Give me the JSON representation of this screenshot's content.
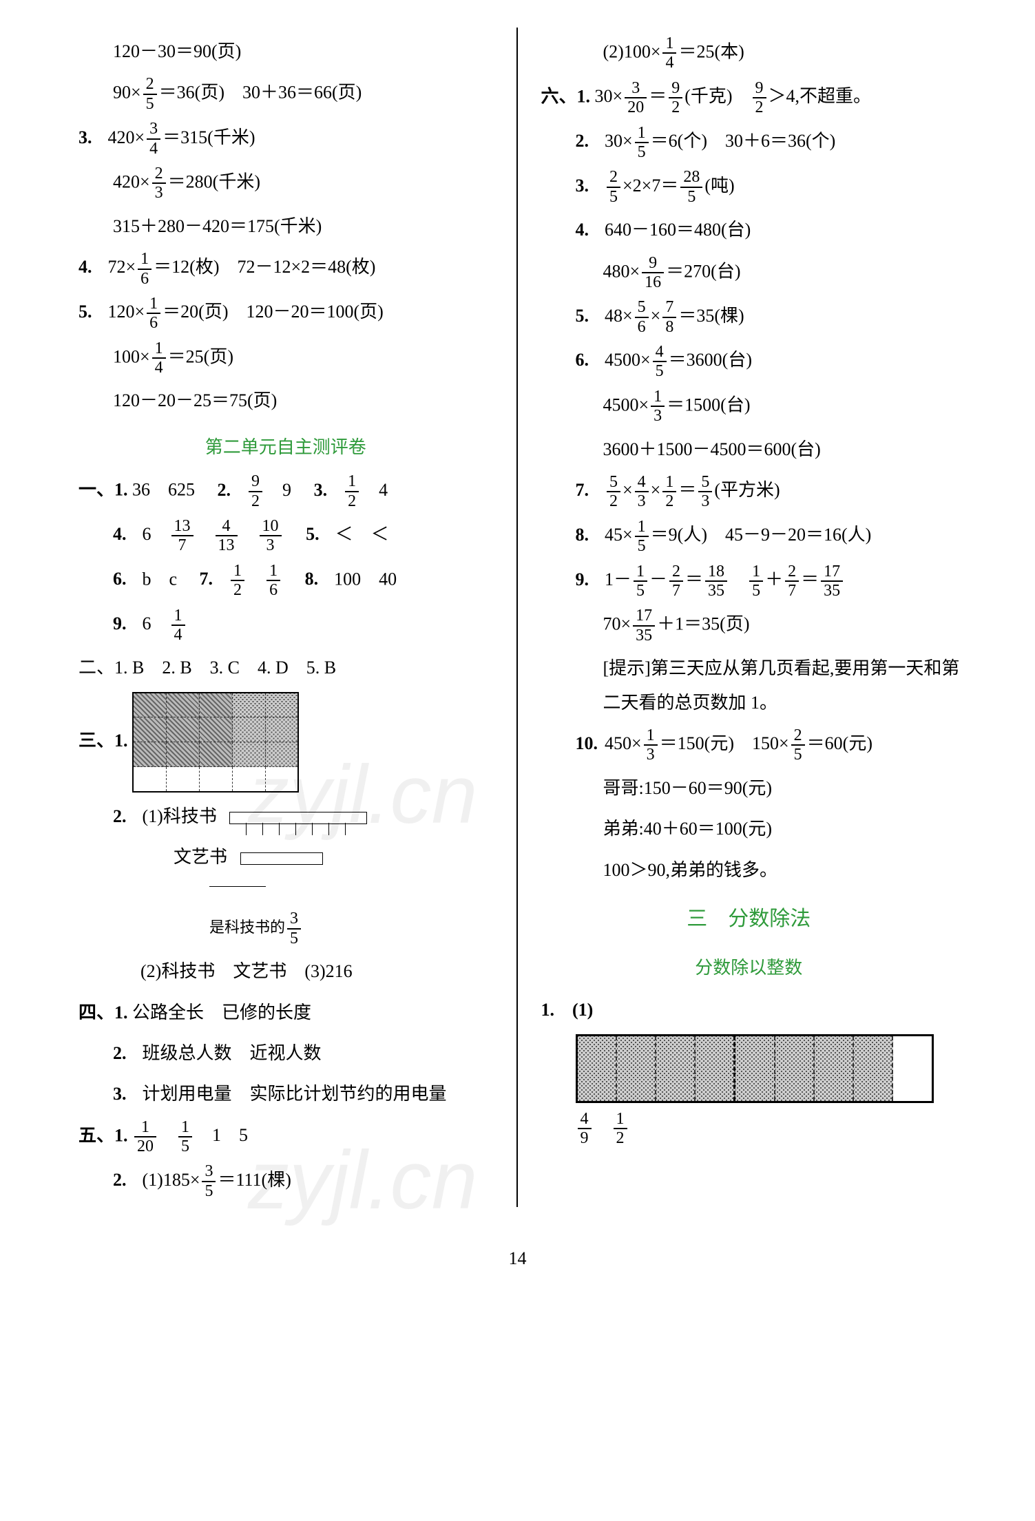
{
  "left": {
    "top_lines": [
      "120－30＝90(页)",
      "90×{2/5}＝36(页)　30＋36＝66(页)"
    ],
    "items": [
      {
        "n": "3.",
        "lines": [
          "420×{3/4}＝315(千米)",
          "420×{2/3}＝280(千米)",
          "315＋280－420＝175(千米)"
        ]
      },
      {
        "n": "4.",
        "lines": [
          "72×{1/6}＝12(枚)　72－12×2＝48(枚)"
        ]
      },
      {
        "n": "5.",
        "lines": [
          "120×{1/6}＝20(页)　120－20＝100(页)",
          "100×{1/4}＝25(页)",
          "120－20－25＝75(页)"
        ]
      }
    ],
    "test_title": "第二单元自主测评卷",
    "sec1": [
      {
        "n": "一、1.",
        "t": "36　625　"
      },
      {
        "after": [
          {
            "n": "2.",
            "t": "{9/2}　9"
          },
          {
            "n": "3.",
            "t": "{1/2}　4"
          }
        ]
      },
      {
        "n": "4.",
        "t": "6　{13/7}　{4/13}　{10/3}　"
      },
      {
        "after2": {
          "n": "5.",
          "t": "＜　＜"
        }
      },
      {
        "n": "6.",
        "t": "b　c　"
      },
      {
        "after3": [
          {
            "n": "7.",
            "t": "{1/2}　{1/6}"
          },
          {
            "n": "8.",
            "t": "100　40"
          }
        ]
      },
      {
        "n": "9.",
        "t": "6　{1/4}"
      }
    ],
    "sec2": "二、1. B　2. B　3. C　4. D　5. B",
    "sec3_label": "三、1.",
    "sec3_2_1": "2.　(1)科技书",
    "sec3_2_2": "文艺书",
    "sec3_2_bracket": "是科技书的{3/5}",
    "sec3_2_3": "(2)科技书　文艺书　(3)216",
    "sec4": [
      {
        "n": "四、1.",
        "t": "公路全长　已修的长度"
      },
      {
        "n": "2.",
        "t": "班级总人数　近视人数"
      },
      {
        "n": "3.",
        "t": "计划用电量　实际比计划节约的用电量"
      }
    ],
    "sec5": [
      {
        "n": "五、1.",
        "t": "{1/20}　{1/5}　1　5"
      },
      {
        "n": "2.",
        "t": "(1)185×{3/5}＝111(棵)"
      }
    ]
  },
  "right": {
    "top": "(2)100×{1/4}＝25(本)",
    "sec6": [
      {
        "n": "六、1.",
        "t": "30×{3/20}＝{9/2}(千克)　{9/2}＞4,不超重。"
      },
      {
        "n": "2.",
        "t": "30×{1/5}＝6(个)　30＋6＝36(个)"
      },
      {
        "n": "3.",
        "t": "{2/5}×2×7＝{28/5}(吨)"
      },
      {
        "n": "4.",
        "t": "640－160＝480(台)",
        "extra": [
          "480×{9/16}＝270(台)"
        ]
      },
      {
        "n": "5.",
        "t": "48×{5/6}×{7/8}＝35(棵)"
      },
      {
        "n": "6.",
        "t": "4500×{4/5}＝3600(台)",
        "extra": [
          "4500×{1/3}＝1500(台)",
          "3600＋1500－4500＝600(台)"
        ]
      },
      {
        "n": "7.",
        "t": "{5/2}×{4/3}×{1/2}＝{5/3}(平方米)"
      },
      {
        "n": "8.",
        "t": "45×{1/5}＝9(人)　45－9－20＝16(人)"
      },
      {
        "n": "9.",
        "t": "1－{1/5}－{2/7}＝{18/35}　{1/5}＋{2/7}＝{17/35}",
        "extra": [
          "70×{17/35}＋1＝35(页)",
          "[提示]第三天应从第几页看起,要用第一天和第二天看的总页数加 1。"
        ]
      },
      {
        "n": "10.",
        "t": "450×{1/3}＝150(元)　150×{2/5}＝60(元)",
        "extra": [
          "哥哥:150－60＝90(元)",
          "弟弟:40＋60＝100(元)",
          "100＞90,弟弟的钱多。"
        ]
      }
    ],
    "title3": "三　分数除法",
    "subtitle3": "分数除以整数",
    "bar_label": "1.　(1)",
    "bar_answers": "{4/9}　{1/2}"
  },
  "page_number": "14"
}
